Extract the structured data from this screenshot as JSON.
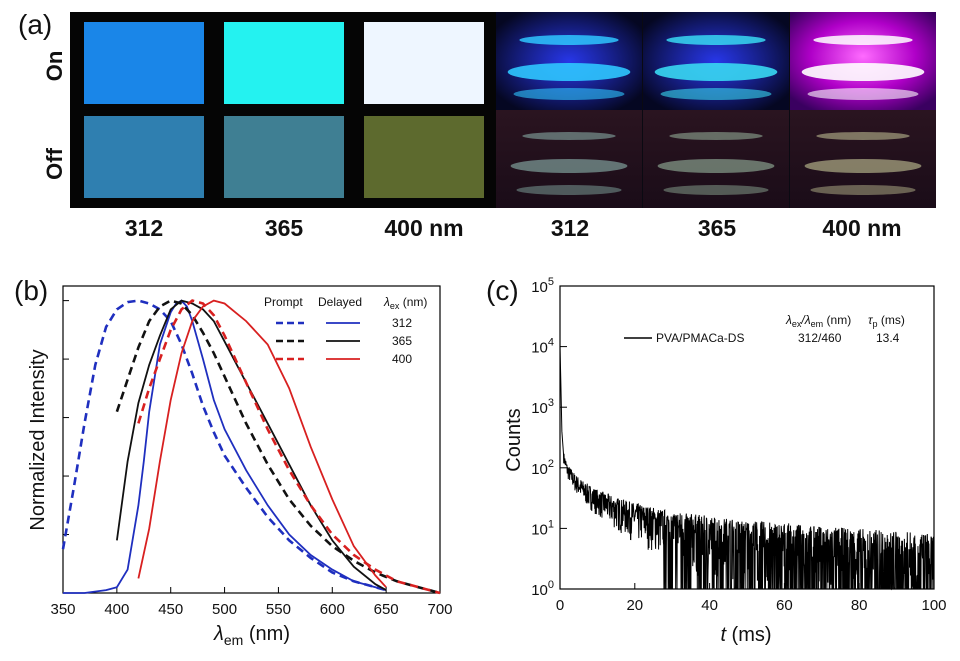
{
  "panel_a": {
    "label": "(a)",
    "row_on": "On",
    "row_off": "Off",
    "films": [
      {
        "wavelength": "312",
        "on_color": "#1a86e8",
        "off_color": "#2f7fb0"
      },
      {
        "wavelength": "365",
        "on_color": "#24f2f0",
        "off_color": "#3f7f93"
      },
      {
        "wavelength": "400 nm",
        "on_color": "#eef6ff",
        "off_color": "#5d6a2e"
      }
    ],
    "vials": [
      {
        "wavelength": "312",
        "on_glow": "#2fc6ff",
        "off_glow": "#8fb8b0"
      },
      {
        "wavelength": "365",
        "on_glow": "#38d8f2",
        "off_glow": "#9ab8a0"
      },
      {
        "wavelength": "400 nm",
        "on_glow": "#ffffff",
        "off_glow": "#c8c89a"
      }
    ]
  },
  "chart_data": [
    {
      "panel": "(b)",
      "type": "line",
      "xlabel_symbol": "λ",
      "xlabel_sub": "em",
      "xlabel_unit": " (nm)",
      "ylabel": "Normalized Intensity",
      "xlim": [
        350,
        700
      ],
      "ylim": [
        0,
        1.05
      ],
      "xticks": [
        "350",
        "400",
        "450",
        "500",
        "550",
        "600",
        "650",
        "700"
      ],
      "legend": {
        "prompt": "Prompt",
        "delayed": "Delayed",
        "lambda_symbol": "λ",
        "lambda_sub": "ex",
        "lambda_unit": " (nm)",
        "rows": [
          {
            "label": "312",
            "color": "#1f2fbf"
          },
          {
            "label": "365",
            "color": "#111111"
          },
          {
            "label": "400",
            "color": "#d82020"
          }
        ]
      },
      "series": [
        {
          "name": "Prompt 312",
          "style": "dashed",
          "color": "#1f2fbf",
          "x": [
            350,
            360,
            370,
            380,
            390,
            400,
            410,
            420,
            430,
            440,
            450,
            460,
            470,
            480,
            490,
            500,
            520,
            540,
            560,
            580,
            600,
            620,
            640,
            650
          ],
          "y": [
            0.15,
            0.36,
            0.58,
            0.78,
            0.91,
            0.97,
            0.995,
            1.0,
            0.99,
            0.97,
            0.93,
            0.85,
            0.75,
            0.64,
            0.55,
            0.47,
            0.36,
            0.26,
            0.18,
            0.12,
            0.07,
            0.04,
            0.02,
            0.01
          ]
        },
        {
          "name": "Delayed 312",
          "style": "solid",
          "color": "#1f2fbf",
          "x": [
            350,
            370,
            390,
            400,
            410,
            420,
            425,
            430,
            440,
            450,
            455,
            460,
            465,
            470,
            480,
            490,
            500,
            520,
            540,
            560,
            580,
            600,
            620,
            640,
            650
          ],
          "y": [
            0.0,
            0.0,
            0.01,
            0.02,
            0.08,
            0.3,
            0.45,
            0.62,
            0.85,
            0.96,
            0.99,
            1.0,
            0.98,
            0.93,
            0.8,
            0.66,
            0.56,
            0.42,
            0.3,
            0.2,
            0.13,
            0.08,
            0.04,
            0.02,
            0.01
          ]
        },
        {
          "name": "Prompt 365",
          "style": "dashed",
          "color": "#111111",
          "x": [
            400,
            410,
            420,
            430,
            440,
            450,
            460,
            470,
            480,
            490,
            500,
            520,
            540,
            560,
            580,
            600,
            620,
            640,
            660,
            680,
            700
          ],
          "y": [
            0.62,
            0.73,
            0.84,
            0.93,
            0.98,
            1.0,
            0.99,
            0.95,
            0.89,
            0.82,
            0.74,
            0.58,
            0.44,
            0.32,
            0.23,
            0.16,
            0.11,
            0.07,
            0.04,
            0.02,
            0.0
          ]
        },
        {
          "name": "Delayed 365",
          "style": "solid",
          "color": "#111111",
          "x": [
            400,
            410,
            420,
            430,
            440,
            450,
            460,
            470,
            480,
            490,
            500,
            520,
            540,
            560,
            580,
            600,
            620,
            640,
            650
          ],
          "y": [
            0.18,
            0.45,
            0.65,
            0.78,
            0.88,
            0.97,
            1.0,
            0.99,
            0.97,
            0.93,
            0.86,
            0.72,
            0.58,
            0.44,
            0.3,
            0.18,
            0.09,
            0.03,
            0.01
          ]
        },
        {
          "name": "Prompt 400",
          "style": "dashed",
          "color": "#d82020",
          "x": [
            420,
            430,
            440,
            450,
            460,
            470,
            480,
            490,
            500,
            520,
            540,
            560,
            580,
            600,
            620,
            640,
            660,
            680,
            700
          ],
          "y": [
            0.58,
            0.7,
            0.8,
            0.9,
            0.97,
            1.0,
            0.99,
            0.95,
            0.88,
            0.72,
            0.56,
            0.42,
            0.3,
            0.2,
            0.13,
            0.08,
            0.04,
            0.02,
            0.0
          ]
        },
        {
          "name": "Delayed 400",
          "style": "solid",
          "color": "#d82020",
          "x": [
            420,
            430,
            440,
            450,
            460,
            470,
            480,
            490,
            500,
            510,
            520,
            540,
            560,
            580,
            600,
            620,
            640,
            650
          ],
          "y": [
            0.05,
            0.22,
            0.45,
            0.66,
            0.82,
            0.93,
            0.98,
            1.0,
            0.99,
            0.96,
            0.93,
            0.85,
            0.7,
            0.5,
            0.32,
            0.16,
            0.06,
            0.02
          ]
        }
      ]
    },
    {
      "panel": "(c)",
      "type": "line",
      "scale_y": "log",
      "xlabel_symbol": "t",
      "xlabel_unit": " (ms)",
      "ylabel": "Counts",
      "xlim": [
        0,
        100
      ],
      "ylim_exp": [
        0,
        5
      ],
      "xticks": [
        "0",
        "20",
        "40",
        "60",
        "80",
        "100"
      ],
      "yticks": [
        {
          "base": "10",
          "exp": "0"
        },
        {
          "base": "10",
          "exp": "1"
        },
        {
          "base": "10",
          "exp": "2"
        },
        {
          "base": "10",
          "exp": "3"
        },
        {
          "base": "10",
          "exp": "4"
        },
        {
          "base": "10",
          "exp": "5"
        }
      ],
      "legend": "PVA/PMACa-DS",
      "table": {
        "h1_a": "λ",
        "h1_a_sub": "ex",
        "h1_sep": "/λ",
        "h1_b_sub": "em",
        "h1_unit": " (nm)",
        "h2": "τ",
        "h2_sub": "p",
        "h2_unit": " (ms)",
        "v1": "312/460",
        "v2": "13.4"
      },
      "series": [
        {
          "name": "PVA/PMACa-DS",
          "color": "#000000",
          "t": [
            0,
            0.2,
            0.5,
            1,
            2,
            4,
            6,
            8,
            10,
            15,
            20,
            30,
            40,
            50,
            60,
            70,
            80,
            90,
            100
          ],
          "counts": [
            10000,
            3000,
            400,
            150,
            90,
            60,
            45,
            36,
            30,
            21,
            16,
            11,
            8.5,
            7,
            6,
            5,
            4.5,
            4,
            3.5
          ]
        }
      ]
    }
  ]
}
